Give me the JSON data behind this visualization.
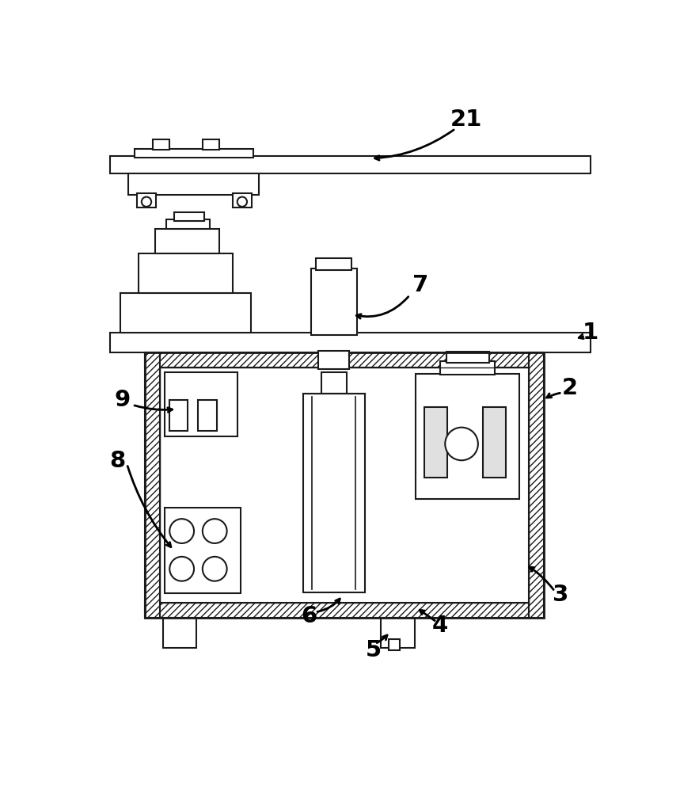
{
  "bg": "#ffffff",
  "lc": "#1a1a1a",
  "lw": 1.5,
  "fs": 21,
  "fig_w": 8.59,
  "fig_h": 10.0,
  "dpi": 100,
  "hatch_density": "////"
}
